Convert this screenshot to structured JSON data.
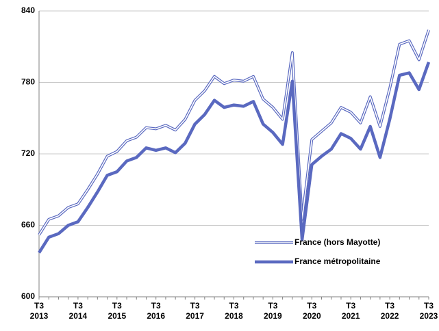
{
  "chart_data": {
    "type": "line",
    "categories": [
      "T3 2013",
      null,
      null,
      null,
      "T3 2014",
      null,
      null,
      null,
      "T3 2015",
      null,
      null,
      null,
      "T3 2016",
      null,
      null,
      null,
      "T3 2017",
      null,
      null,
      null,
      "T3 2018",
      null,
      null,
      null,
      "T3 2019",
      null,
      null,
      null,
      "T3 2020",
      null,
      null,
      null,
      "T3 2021",
      null,
      null,
      null,
      "T3 2022",
      null,
      null,
      null,
      "T3 2023"
    ],
    "series": [
      {
        "name": "France (hors Mayotte)",
        "color": "#5a69c0",
        "style": "double",
        "values": [
          652,
          665,
          668,
          675,
          678,
          690,
          703,
          718,
          722,
          731,
          734,
          742,
          741,
          744,
          740,
          749,
          765,
          773,
          785,
          779,
          782,
          781,
          785,
          766,
          759,
          749,
          805,
          665,
          732,
          739,
          746,
          759,
          755,
          746,
          768,
          743,
          775,
          812,
          815,
          799,
          824
        ]
      },
      {
        "name": "France métropolitaine",
        "color": "#5a69c0",
        "style": "solid",
        "values": [
          637,
          650,
          653,
          660,
          663,
          675,
          688,
          702,
          705,
          714,
          717,
          725,
          723,
          725,
          721,
          729,
          745,
          753,
          765,
          759,
          761,
          760,
          764,
          745,
          738,
          728,
          781,
          648,
          711,
          718,
          724,
          737,
          733,
          724,
          743,
          717,
          749,
          786,
          788,
          774,
          797
        ]
      }
    ],
    "ylim": [
      600,
      840
    ],
    "yticks": [
      600,
      660,
      720,
      780,
      840
    ],
    "grid": true,
    "legend": "lower right"
  }
}
